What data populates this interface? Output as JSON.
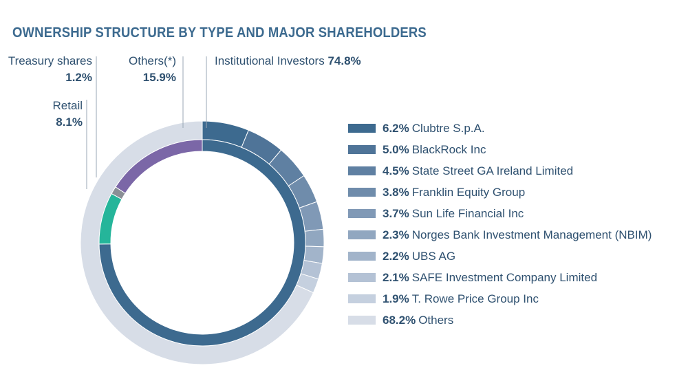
{
  "chart_data": {
    "type": "pie",
    "title": "OWNERSHIP STRUCTURE BY TYPE AND MAJOR SHAREHOLDERS",
    "inner_ring": [
      {
        "label": "Institutional Investors",
        "value": 74.8,
        "value_text": "74.8%",
        "color": "#3d6a8f"
      },
      {
        "label": "Retail",
        "value": 8.1,
        "value_text": "8.1%",
        "color": "#25b59a"
      },
      {
        "label": "Treasury shares",
        "value": 1.2,
        "value_text": "1.2%",
        "color": "#8a8f96"
      },
      {
        "label": "Others(*)",
        "value": 15.9,
        "value_text": "15.9%",
        "color": "#7b67a7"
      }
    ],
    "outer_ring": [
      {
        "label": "Clubtre S.p.A.",
        "value": 6.2,
        "value_text": "6.2%",
        "color": "#3d6a8f"
      },
      {
        "label": "BlackRock Inc",
        "value": 5.0,
        "value_text": "5.0%",
        "color": "#4f7498"
      },
      {
        "label": "State Street GA Ireland Limited",
        "value": 4.5,
        "value_text": "4.5%",
        "color": "#5f80a2"
      },
      {
        "label": "Franklin Equity Group",
        "value": 3.8,
        "value_text": "3.8%",
        "color": "#6f8cab"
      },
      {
        "label": "Sun Life Financial Inc",
        "value": 3.7,
        "value_text": "3.7%",
        "color": "#8099b6"
      },
      {
        "label": "Norges Bank Investment Management (NBIM)",
        "value": 2.3,
        "value_text": "2.3%",
        "color": "#91a7c0"
      },
      {
        "label": "UBS AG",
        "value": 2.2,
        "value_text": "2.2%",
        "color": "#a2b4ca"
      },
      {
        "label": "SAFE Investment Company Limited",
        "value": 2.1,
        "value_text": "2.1%",
        "color": "#b4c2d5"
      },
      {
        "label": "T. Rowe Price Group Inc",
        "value": 1.9,
        "value_text": "1.9%",
        "color": "#c5d0df"
      },
      {
        "label": "Others",
        "value": 68.2,
        "value_text": "68.2%",
        "color": "#d7dde7"
      }
    ]
  }
}
